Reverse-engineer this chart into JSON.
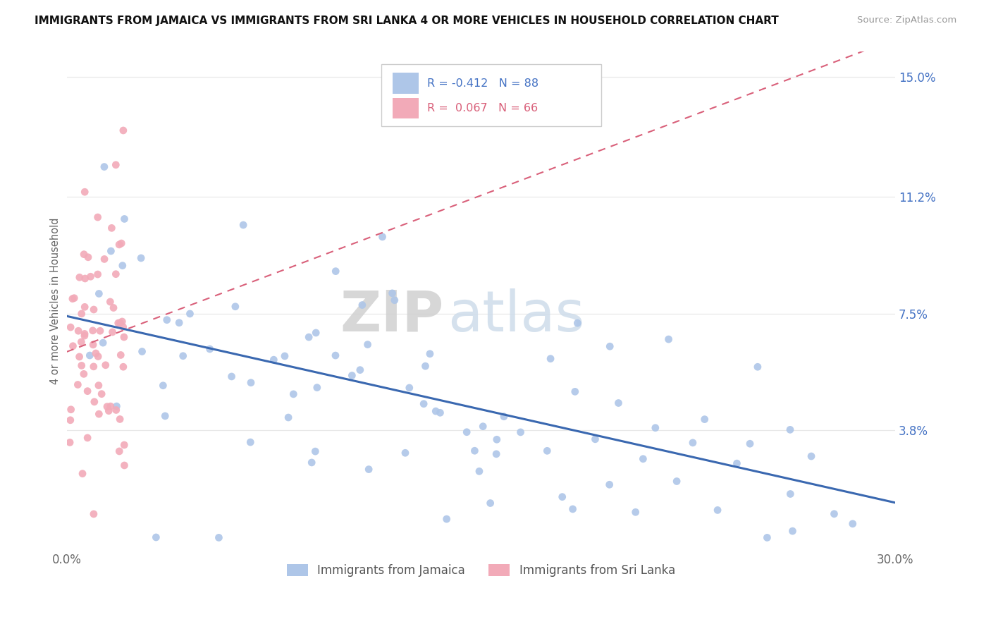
{
  "title": "IMMIGRANTS FROM JAMAICA VS IMMIGRANTS FROM SRI LANKA 4 OR MORE VEHICLES IN HOUSEHOLD CORRELATION CHART",
  "source": "Source: ZipAtlas.com",
  "ylabel": "4 or more Vehicles in Household",
  "x_min": 0.0,
  "x_max": 0.3,
  "y_min": 0.0,
  "y_max": 0.158,
  "y_ticks": [
    0.038,
    0.075,
    0.112,
    0.15
  ],
  "y_tick_labels": [
    "3.8%",
    "7.5%",
    "11.2%",
    "15.0%"
  ],
  "x_ticks": [
    0.0,
    0.3
  ],
  "x_tick_labels": [
    "0.0%",
    "30.0%"
  ],
  "series1_label": "Immigrants from Jamaica",
  "series2_label": "Immigrants from Sri Lanka",
  "series1_color": "#aec6e8",
  "series2_color": "#f2aab8",
  "line1_color": "#3a68b0",
  "line2_color": "#d9607a",
  "legend_r1": "R = -0.412",
  "legend_n1": "N = 88",
  "legend_r2": "R =  0.067",
  "legend_n2": "N = 66",
  "watermark_zip": "ZIP",
  "watermark_atlas": "atlas",
  "grid_color": "#e8e8e8"
}
